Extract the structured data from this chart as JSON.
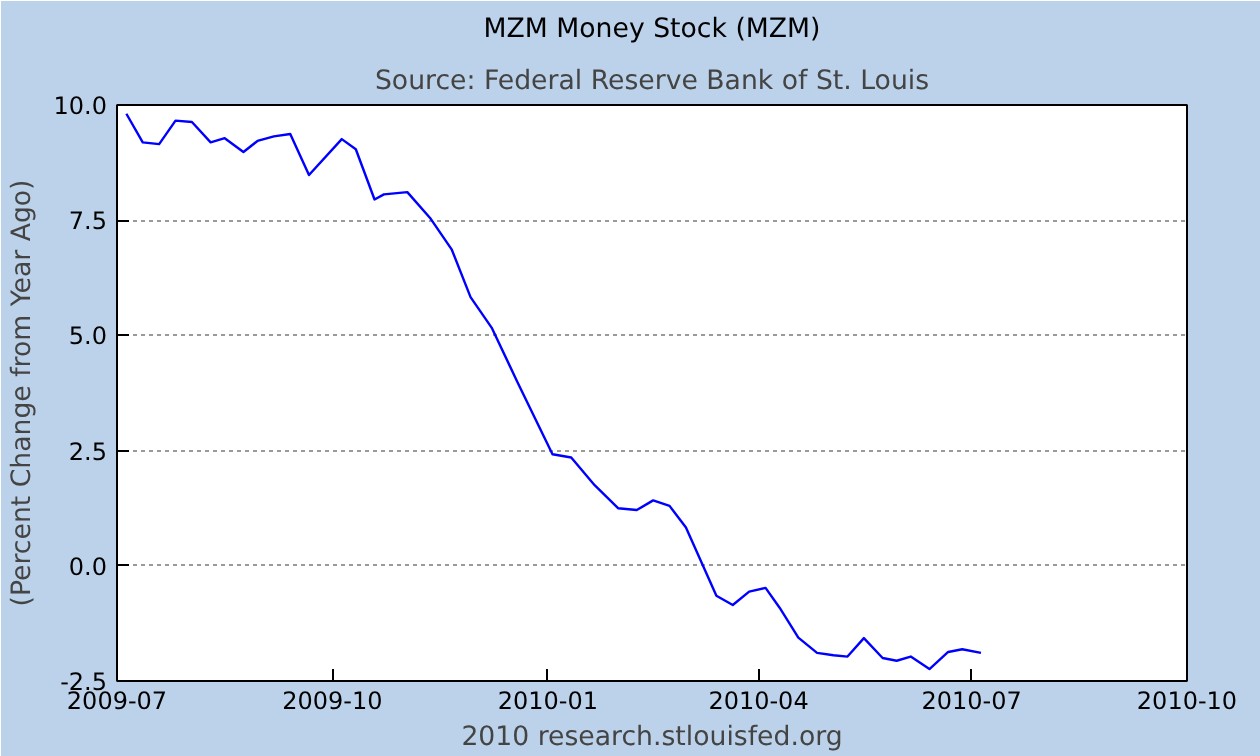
{
  "chart_data": {
    "type": "line",
    "title": "MZM Money Stock (MZM)",
    "subtitle": "Source: Federal Reserve Bank of St. Louis",
    "ylabel": "(Percent Change from Year Ago)",
    "annotations": [
      "2010 research.stlouisfed.org"
    ],
    "x": [
      "2009-07-05",
      "2009-07-12",
      "2009-07-19",
      "2009-07-26",
      "2009-08-02",
      "2009-08-10",
      "2009-08-16",
      "2009-08-24",
      "2009-08-30",
      "2009-09-06",
      "2009-09-13",
      "2009-09-21",
      "2009-10-05",
      "2009-10-11",
      "2009-10-19",
      "2009-10-23",
      "2009-11-02",
      "2009-11-12",
      "2009-11-21",
      "2009-11-29",
      "2009-12-08",
      "2009-12-19",
      "2010-01-03",
      "2010-01-11",
      "2010-01-21",
      "2010-01-31",
      "2010-02-08",
      "2010-02-15",
      "2010-02-22",
      "2010-03-01",
      "2010-03-14",
      "2010-03-21",
      "2010-03-28",
      "2010-04-04",
      "2010-04-10",
      "2010-04-18",
      "2010-04-26",
      "2010-05-03",
      "2010-05-09",
      "2010-05-16",
      "2010-05-24",
      "2010-05-30",
      "2010-06-05",
      "2010-06-13",
      "2010-06-21",
      "2010-06-27",
      "2010-07-05"
    ],
    "series": [
      {
        "color": "#0000ff",
        "values": [
          9.81,
          9.19,
          9.15,
          9.66,
          9.63,
          9.19,
          9.28,
          8.98,
          9.22,
          9.32,
          9.37,
          8.48,
          9.26,
          9.04,
          7.95,
          8.06,
          8.11,
          7.53,
          6.86,
          5.83,
          5.17,
          3.99,
          2.42,
          2.35,
          1.75,
          1.25,
          1.21,
          1.42,
          1.3,
          0.83,
          -0.65,
          -0.85,
          -0.56,
          -0.48,
          -0.91,
          -1.56,
          -1.89,
          -1.94,
          -1.97,
          -1.57,
          -2.0,
          -2.06,
          -1.97,
          -2.24,
          -1.87,
          -1.81,
          -1.89
        ]
      }
    ],
    "xlim": [
      "2009-07-01",
      "2010-10-01"
    ],
    "xticks": [
      "2009-07",
      "2009-10",
      "2010-01",
      "2010-04",
      "2010-07",
      "2010-10"
    ],
    "ylim": [
      -2.5,
      10
    ],
    "yticks": [
      {
        "value": -2.5,
        "label": "-2.5"
      },
      {
        "value": 0,
        "label": "0.0"
      },
      {
        "value": 2.5,
        "label": "2.5"
      },
      {
        "value": 5,
        "label": "5.0"
      },
      {
        "value": 7.5,
        "label": "7.5"
      },
      {
        "value": 10,
        "label": "10.0"
      }
    ],
    "grid": "y",
    "line_style": "solid",
    "marker": "none"
  }
}
